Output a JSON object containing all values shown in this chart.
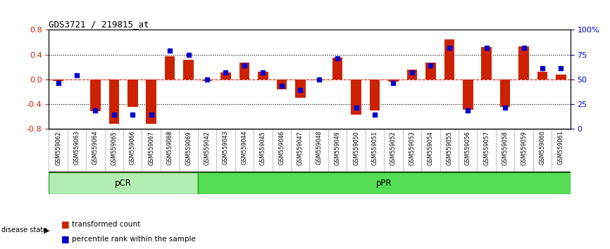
{
  "title": "GDS3721 / 219815_at",
  "categories": [
    "GSM559062",
    "GSM559063",
    "GSM559064",
    "GSM559065",
    "GSM559066",
    "GSM559067",
    "GSM559068",
    "GSM559069",
    "GSM559042",
    "GSM559043",
    "GSM559044",
    "GSM559045",
    "GSM559046",
    "GSM559047",
    "GSM559048",
    "GSM559049",
    "GSM559050",
    "GSM559051",
    "GSM559052",
    "GSM559053",
    "GSM559054",
    "GSM559055",
    "GSM559056",
    "GSM559057",
    "GSM559058",
    "GSM559059",
    "GSM559060",
    "GSM559061"
  ],
  "transformed_count": [
    -0.03,
    0.0,
    -0.52,
    -0.72,
    -0.45,
    -0.72,
    0.37,
    0.31,
    -0.03,
    0.11,
    0.27,
    0.12,
    -0.16,
    -0.3,
    -0.02,
    0.35,
    -0.57,
    -0.51,
    -0.04,
    0.16,
    0.27,
    0.65,
    -0.5,
    0.52,
    -0.45,
    0.53,
    0.12,
    0.08
  ],
  "percentile_rank": [
    46,
    54,
    18,
    14,
    14,
    14,
    79,
    75,
    50,
    57,
    64,
    57,
    43,
    39,
    50,
    71,
    21,
    14,
    46,
    57,
    64,
    82,
    18,
    82,
    21,
    82,
    61,
    61
  ],
  "pcr_count": 8,
  "ppr_count": 20,
  "bar_color": "#CC2200",
  "dot_color": "#0000CC",
  "pcr_color": "#B2EEB2",
  "ppr_color": "#55DD55",
  "group_border_color": "#229922",
  "tick_bg": "#DDDDDD",
  "ylim": [
    -0.8,
    0.8
  ],
  "yticks": [
    -0.8,
    -0.4,
    0.0,
    0.4,
    0.8
  ],
  "y2ticks": [
    0,
    25,
    50,
    75,
    100
  ],
  "y2labels": [
    "0",
    "25",
    "50",
    "75",
    "100%"
  ]
}
